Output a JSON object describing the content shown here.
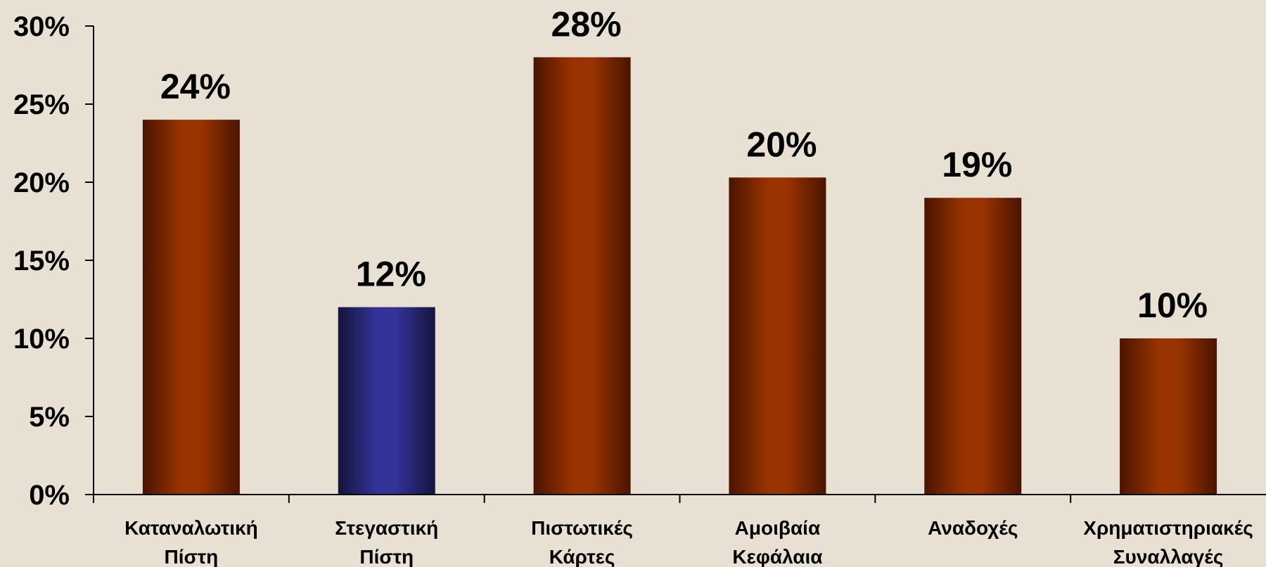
{
  "chart_data": {
    "type": "bar",
    "categories": [
      [
        "Καταναλωτική",
        "Πίστη"
      ],
      [
        "Στεγαστική",
        "Πίστη"
      ],
      [
        "Πιστωτικές",
        "Κάρτες"
      ],
      [
        "Αμοιβαία",
        "Κεφάλαια"
      ],
      [
        "Αναδοχές"
      ],
      [
        "Χρηματιστηριακές",
        "Συναλλαγές"
      ]
    ],
    "values": [
      24,
      12,
      28,
      20.3,
      19,
      10
    ],
    "data_labels": [
      "24%",
      "12%",
      "28%",
      "20%",
      "19%",
      "10%"
    ],
    "highlight_index": 1,
    "ylim": [
      0,
      30
    ],
    "yticks": [
      0,
      5,
      10,
      15,
      20,
      25,
      30
    ],
    "ytick_labels": [
      "0%",
      "5%",
      "10%",
      "15%",
      "20%",
      "25%",
      "30%"
    ],
    "grid": false,
    "title": "",
    "xlabel": "",
    "ylabel": "",
    "colors": {
      "bar_main": "#993300",
      "bar_dark": "#4a1400",
      "bar_highlight": "#333399",
      "bar_highlight_dark": "#14143c",
      "axis": "#000000",
      "background": "#e8e0d3"
    }
  }
}
